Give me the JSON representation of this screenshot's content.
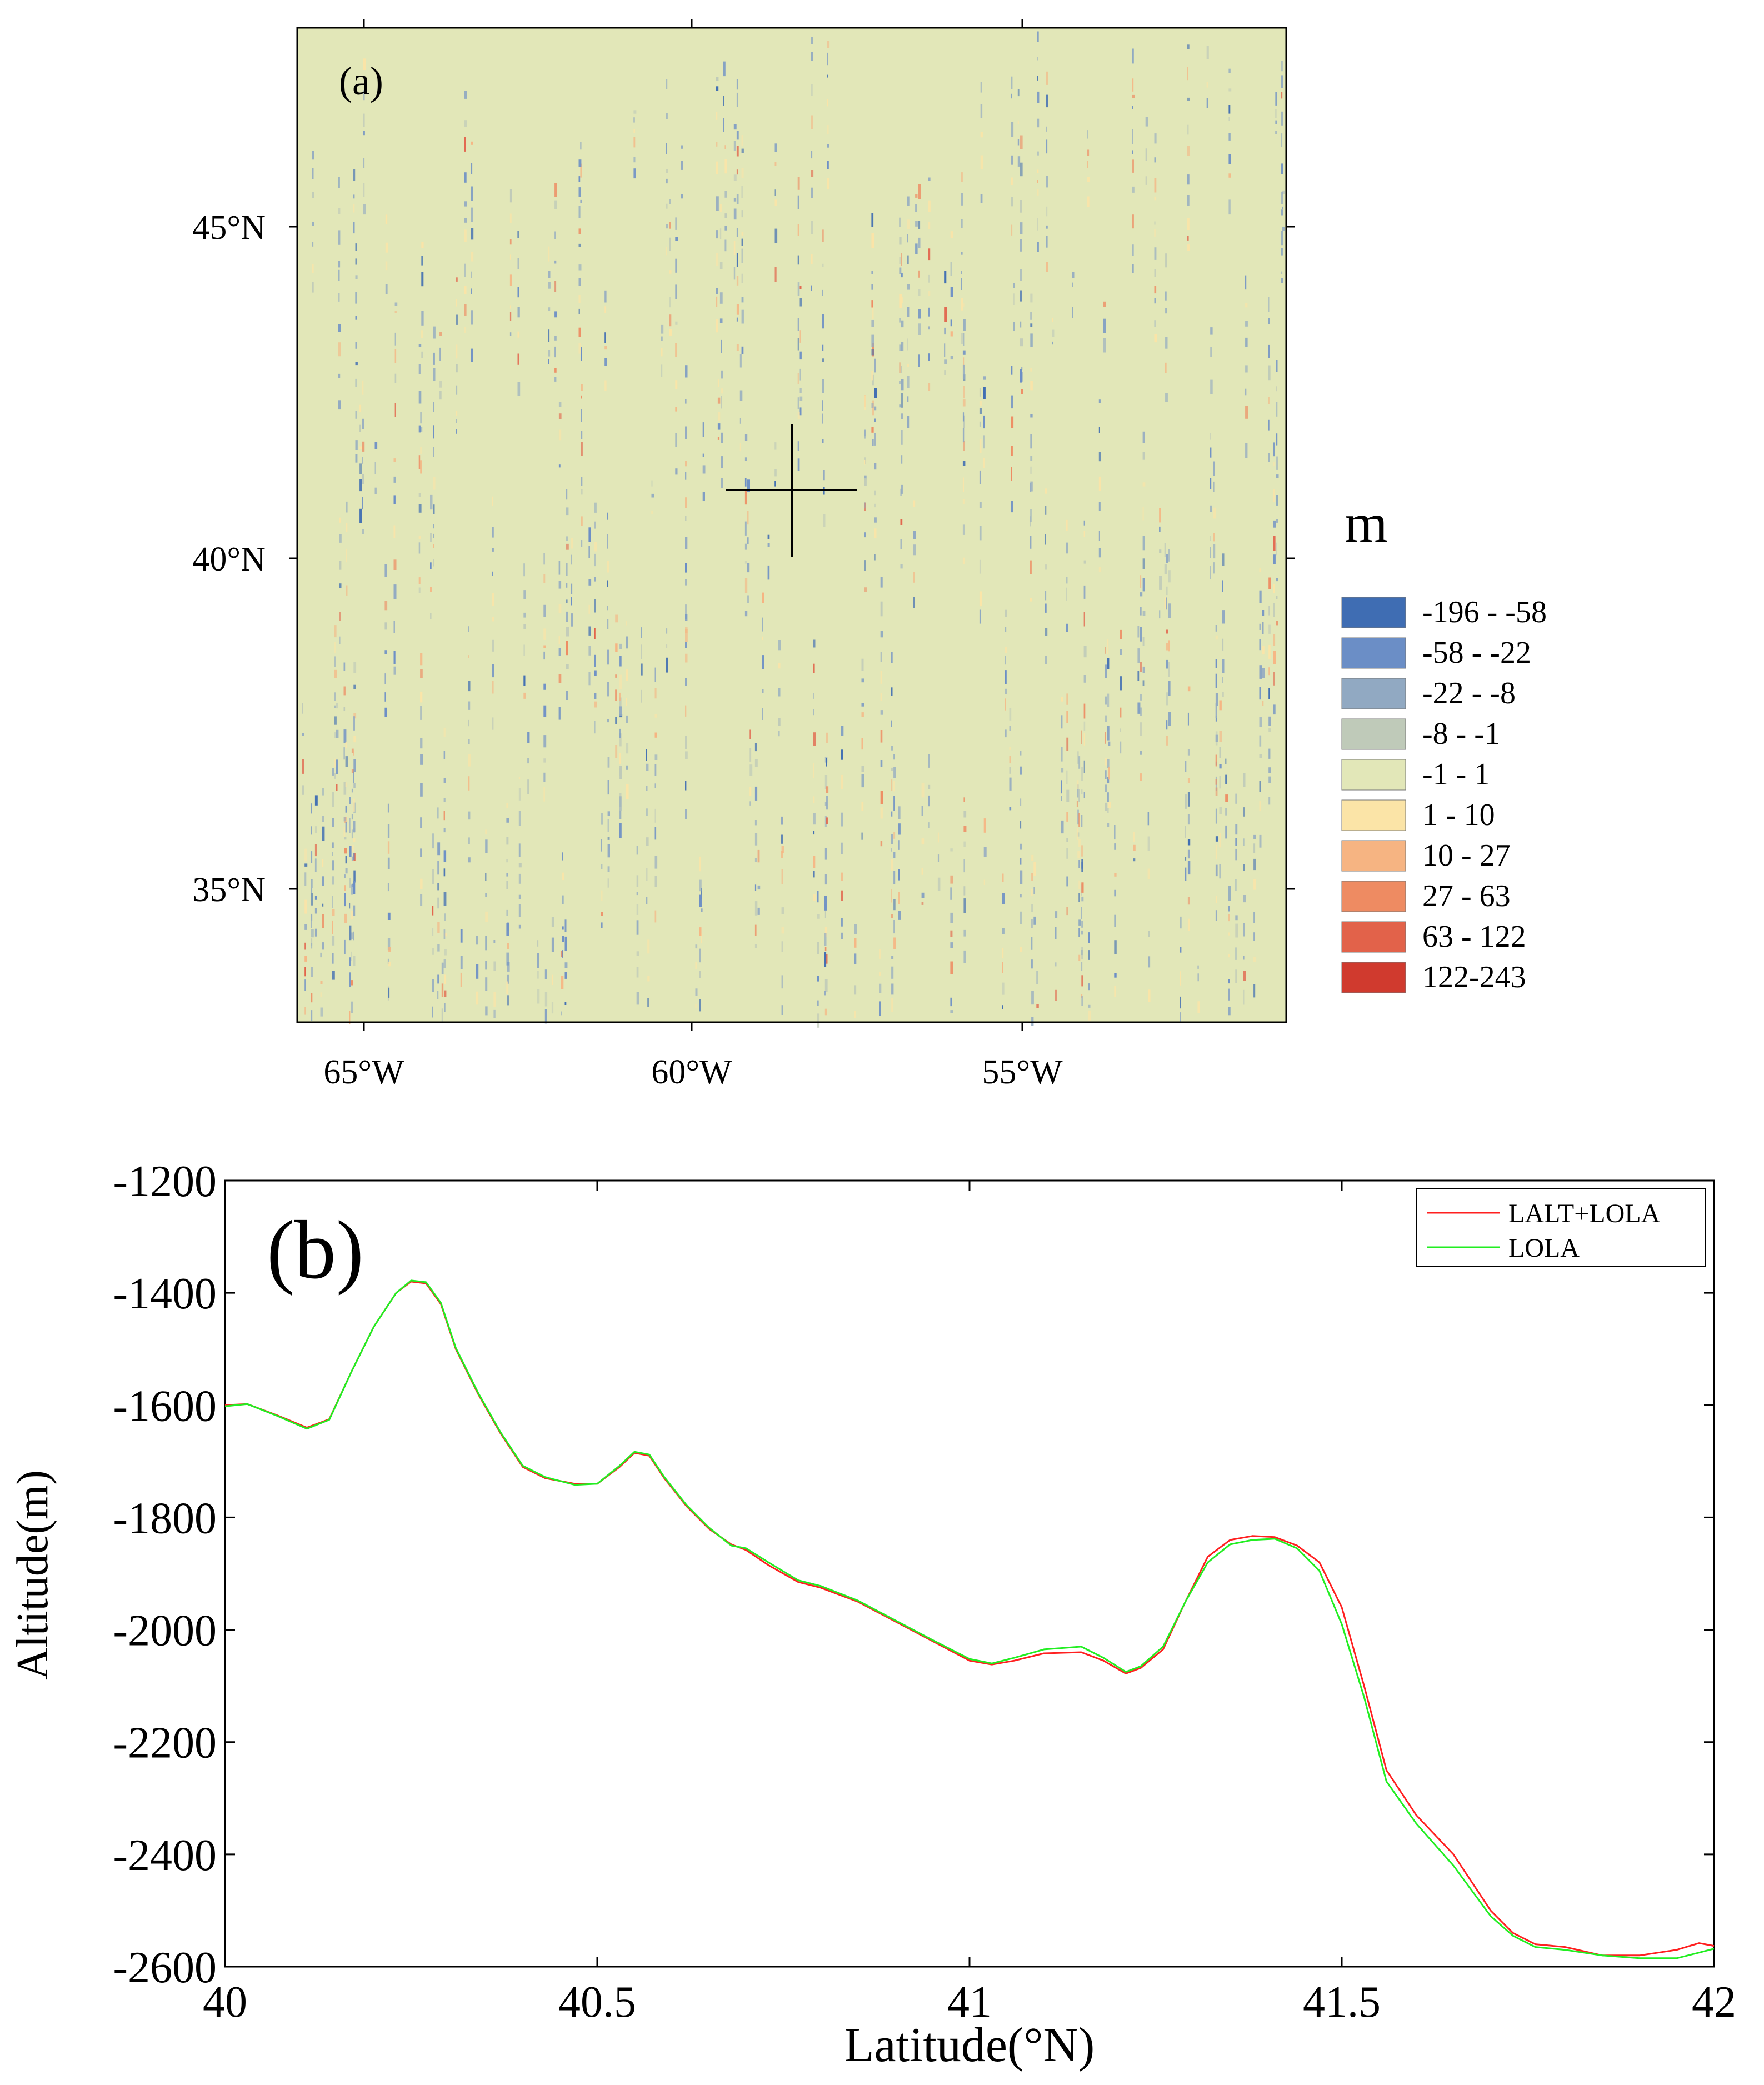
{
  "panel_a": {
    "label": "(a)",
    "lon_ticks": [
      "65°W",
      "60°W",
      "55°W"
    ],
    "lat_ticks": [
      "45°N",
      "40°N",
      "35°N"
    ],
    "legend_title": "m",
    "legend": [
      {
        "label": "-196 - -58",
        "color": "#3f6db3"
      },
      {
        "label": "-58 - -22",
        "color": "#6b8ec6"
      },
      {
        "label": "-22 - -8",
        "color": "#91a9c2"
      },
      {
        "label": "-8 - -1",
        "color": "#bfcab9"
      },
      {
        "label": "-1 - 1",
        "color": "#e2e7b8"
      },
      {
        "label": "1 - 10",
        "color": "#fbe4a7"
      },
      {
        "label": "10 - 27",
        "color": "#f6b482"
      },
      {
        "label": "27 - 63",
        "color": "#ee8b62"
      },
      {
        "label": "63 - 122",
        "color": "#e2624a"
      },
      {
        "label": "122-243",
        "color": "#d03a2e"
      }
    ],
    "background_color": "#e2e7b8"
  },
  "chart_data": {
    "type": "line",
    "label": "(b)",
    "xlabel": "Latitude(°N)",
    "ylabel": "Altitude(m)",
    "xlim": [
      40,
      42
    ],
    "ylim": [
      -2600,
      -1200
    ],
    "xticks": [
      "40",
      "40.5",
      "41",
      "41.5",
      "42"
    ],
    "yticks": [
      "-1200",
      "-1400",
      "-1600",
      "-1800",
      "-2000",
      "-2200",
      "-2400",
      "-2600"
    ],
    "legend_position": "top-right",
    "series": [
      {
        "name": "LALT+LOLA",
        "color": "#ff2020",
        "x": [
          40.0,
          40.03,
          40.07,
          40.11,
          40.14,
          40.17,
          40.2,
          40.23,
          40.25,
          40.27,
          40.29,
          40.31,
          40.34,
          40.37,
          40.4,
          40.43,
          40.47,
          40.5,
          40.53,
          40.55,
          40.57,
          40.59,
          40.62,
          40.65,
          40.68,
          40.7,
          40.73,
          40.77,
          40.8,
          40.85,
          40.9,
          40.95,
          41.0,
          41.03,
          41.06,
          41.1,
          41.15,
          41.18,
          41.21,
          41.23,
          41.26,
          41.29,
          41.32,
          41.35,
          41.38,
          41.41,
          41.44,
          41.47,
          41.5,
          41.53,
          41.56,
          41.6,
          41.65,
          41.7,
          41.73,
          41.76,
          41.8,
          41.85,
          41.9,
          41.95,
          41.98,
          42.0
        ],
        "y": [
          -1600,
          -1598,
          -1618,
          -1640,
          -1625,
          -1540,
          -1460,
          -1400,
          -1380,
          -1383,
          -1420,
          -1500,
          -1580,
          -1650,
          -1710,
          -1730,
          -1740,
          -1740,
          -1710,
          -1685,
          -1690,
          -1730,
          -1780,
          -1820,
          -1848,
          -1858,
          -1885,
          -1915,
          -1925,
          -1950,
          -1985,
          -2020,
          -2055,
          -2062,
          -2055,
          -2042,
          -2040,
          -2055,
          -2078,
          -2068,
          -2035,
          -1950,
          -1870,
          -1840,
          -1833,
          -1835,
          -1850,
          -1880,
          -1960,
          -2100,
          -2250,
          -2330,
          -2400,
          -2500,
          -2540,
          -2560,
          -2565,
          -2580,
          -2580,
          -2570,
          -2558,
          -2563
        ]
      },
      {
        "name": "LOLA",
        "color": "#22ee22",
        "x": [
          40.0,
          40.03,
          40.07,
          40.11,
          40.14,
          40.17,
          40.2,
          40.23,
          40.25,
          40.27,
          40.29,
          40.31,
          40.34,
          40.37,
          40.4,
          40.43,
          40.47,
          40.5,
          40.53,
          40.55,
          40.57,
          40.59,
          40.62,
          40.65,
          40.68,
          40.7,
          40.73,
          40.77,
          40.8,
          40.85,
          40.9,
          40.95,
          41.0,
          41.03,
          41.06,
          41.1,
          41.15,
          41.18,
          41.21,
          41.23,
          41.26,
          41.29,
          41.32,
          41.35,
          41.38,
          41.41,
          41.44,
          41.47,
          41.5,
          41.53,
          41.56,
          41.6,
          41.65,
          41.7,
          41.73,
          41.76,
          41.8,
          41.85,
          41.9,
          41.95,
          41.98,
          42.0
        ],
        "y": [
          -1602,
          -1598,
          -1619,
          -1642,
          -1626,
          -1540,
          -1460,
          -1400,
          -1378,
          -1381,
          -1418,
          -1498,
          -1578,
          -1648,
          -1708,
          -1728,
          -1742,
          -1740,
          -1708,
          -1683,
          -1688,
          -1728,
          -1778,
          -1818,
          -1850,
          -1855,
          -1880,
          -1912,
          -1922,
          -1948,
          -1983,
          -2018,
          -2052,
          -2060,
          -2050,
          -2035,
          -2030,
          -2050,
          -2075,
          -2065,
          -2030,
          -1950,
          -1880,
          -1848,
          -1840,
          -1838,
          -1855,
          -1895,
          -1990,
          -2120,
          -2270,
          -2345,
          -2420,
          -2510,
          -2545,
          -2565,
          -2570,
          -2580,
          -2585,
          -2585,
          -2575,
          -2568
        ]
      }
    ]
  }
}
